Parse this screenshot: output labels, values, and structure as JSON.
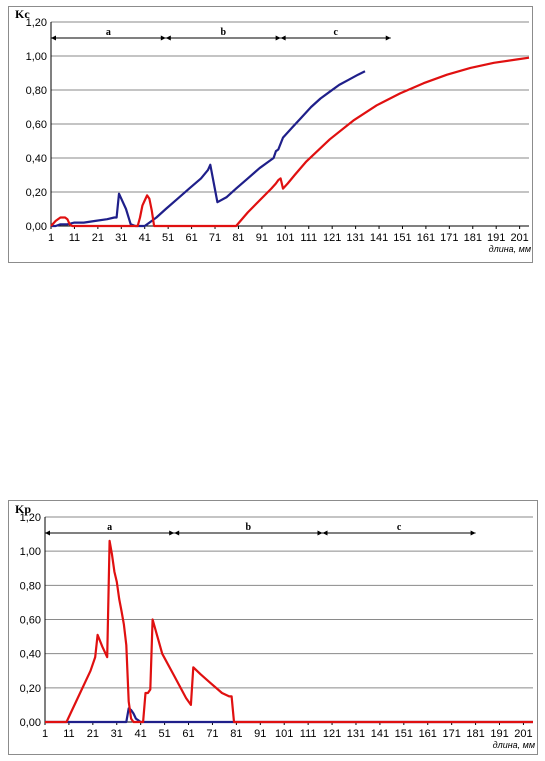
{
  "chart_data": [
    {
      "type": "line",
      "ylabel": "Kc",
      "xlabel": "длина, мм",
      "ylim": [
        0,
        1.2
      ],
      "y_ticks": [
        "0,00",
        "0,20",
        "0,40",
        "0,60",
        "0,80",
        "1,00",
        "1,20"
      ],
      "x_range": [
        1,
        205
      ],
      "x_ticks": [
        "1",
        "11",
        "21",
        "31",
        "41",
        "51",
        "61",
        "71",
        "81",
        "91",
        "101",
        "111",
        "121",
        "131",
        "141",
        "151",
        "161",
        "171",
        "181",
        "191",
        "201"
      ],
      "grid": true,
      "segments": [
        {
          "label": "a",
          "from": 1,
          "to": 50
        },
        {
          "label": "b",
          "from": 50,
          "to": 99
        },
        {
          "label": "c",
          "from": 99,
          "to": 146
        }
      ],
      "series": [
        {
          "color": "#1f1f8a",
          "x": [
            1,
            3,
            5,
            8,
            11,
            15,
            20,
            25,
            28,
            29,
            30,
            33,
            35,
            37,
            40,
            41,
            43,
            46,
            50,
            55,
            60,
            65,
            68,
            69,
            72,
            76,
            80,
            85,
            90,
            94,
            96,
            97,
            98,
            100,
            104,
            108,
            112,
            116,
            120,
            124,
            128,
            132,
            135
          ],
          "y": [
            0,
            0,
            0.01,
            0.01,
            0.02,
            0.02,
            0.03,
            0.04,
            0.05,
            0.05,
            0.19,
            0.1,
            0.01,
            0,
            0,
            0,
            0.02,
            0.05,
            0.1,
            0.16,
            0.22,
            0.28,
            0.33,
            0.36,
            0.14,
            0.17,
            0.22,
            0.28,
            0.34,
            0.38,
            0.4,
            0.44,
            0.45,
            0.52,
            0.58,
            0.64,
            0.7,
            0.75,
            0.79,
            0.83,
            0.86,
            0.89,
            0.91
          ]
        },
        {
          "color": "#e01010",
          "x": [
            1,
            3,
            5,
            7,
            8,
            9,
            10,
            20,
            30,
            37,
            38,
            39,
            40,
            41,
            42,
            43,
            44,
            45,
            46,
            50,
            60,
            70,
            75,
            80,
            85,
            90,
            95,
            97,
            98,
            99,
            100,
            102,
            105,
            110,
            120,
            130,
            140,
            150,
            160,
            170,
            180,
            190,
            200,
            205
          ],
          "y": [
            0,
            0.03,
            0.05,
            0.05,
            0.04,
            0.01,
            0,
            0,
            0,
            0,
            0,
            0.05,
            0.12,
            0.15,
            0.18,
            0.16,
            0.09,
            0,
            0,
            0,
            0,
            0,
            0,
            0,
            0.08,
            0.15,
            0.22,
            0.25,
            0.27,
            0.28,
            0.22,
            0.25,
            0.3,
            0.38,
            0.51,
            0.62,
            0.71,
            0.78,
            0.84,
            0.89,
            0.93,
            0.96,
            0.98,
            0.99
          ]
        }
      ]
    },
    {
      "type": "line",
      "ylabel": "Kp",
      "xlabel": "длина, мм",
      "ylim": [
        0,
        1.2
      ],
      "y_ticks": [
        "0,00",
        "0,20",
        "0,40",
        "0,60",
        "0,80",
        "1,00",
        "1,20"
      ],
      "x_range": [
        1,
        205
      ],
      "x_ticks": [
        "1",
        "11",
        "21",
        "31",
        "41",
        "51",
        "61",
        "71",
        "81",
        "91",
        "101",
        "111",
        "121",
        "131",
        "141",
        "151",
        "161",
        "171",
        "181",
        "191",
        "201"
      ],
      "grid": true,
      "segments": [
        {
          "label": "a",
          "from": 1,
          "to": 55
        },
        {
          "label": "b",
          "from": 55,
          "to": 117
        },
        {
          "label": "c",
          "from": 117,
          "to": 181
        }
      ],
      "series": [
        {
          "color": "#1f1f8a",
          "x": [
            1,
            30,
            35,
            36,
            37,
            38,
            39,
            40,
            41,
            45,
            100,
            150,
            205
          ],
          "y": [
            0,
            0,
            0,
            0.08,
            0.07,
            0.05,
            0.02,
            0.01,
            0,
            0,
            0,
            0,
            0
          ]
        },
        {
          "color": "#e01010",
          "x": [
            1,
            10,
            15,
            20,
            22,
            23,
            25,
            27,
            28,
            29,
            30,
            31,
            32,
            33,
            34,
            35,
            36,
            37,
            38,
            39,
            40,
            41,
            42,
            43,
            44,
            45,
            46,
            47,
            48,
            49,
            50,
            55,
            60,
            62,
            63,
            66,
            70,
            75,
            78,
            79,
            80,
            100,
            150,
            205
          ],
          "y": [
            0,
            0,
            0.15,
            0.3,
            0.38,
            0.51,
            0.44,
            0.38,
            1.06,
            0.98,
            0.88,
            0.82,
            0.72,
            0.65,
            0.57,
            0.45,
            0.12,
            0.02,
            0,
            0,
            0,
            0,
            0,
            0.17,
            0.17,
            0.19,
            0.6,
            0.55,
            0.5,
            0.45,
            0.4,
            0.27,
            0.14,
            0.1,
            0.32,
            0.28,
            0.23,
            0.17,
            0.15,
            0.15,
            0,
            0,
            0,
            0
          ]
        }
      ]
    }
  ]
}
